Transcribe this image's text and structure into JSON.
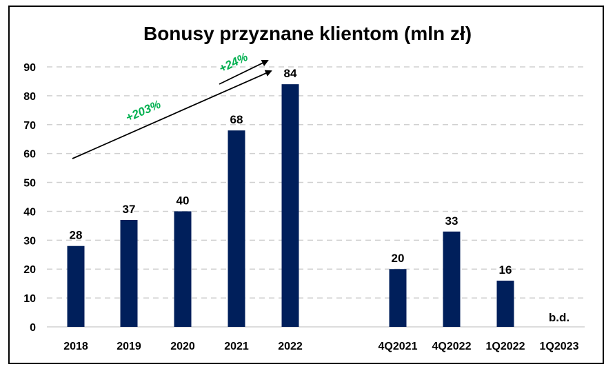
{
  "chart_data": {
    "type": "bar",
    "title": "Bonusy przyznane klientom (mln zł)",
    "categories": [
      "2018",
      "2019",
      "2020",
      "2021",
      "2022",
      "4Q2021",
      "4Q2022",
      "1Q2022",
      "1Q2023"
    ],
    "values": [
      28,
      37,
      40,
      68,
      84,
      20,
      33,
      16,
      null
    ],
    "data_labels": [
      "28",
      "37",
      "40",
      "68",
      "84",
      "20",
      "33",
      "16",
      "b.d."
    ],
    "ylim": [
      0,
      90
    ],
    "yticks": [
      "0",
      "10",
      "20",
      "30",
      "40",
      "50",
      "60",
      "70",
      "80",
      "90"
    ],
    "xlabel": "",
    "ylabel": "",
    "grid": "horizontal dashed",
    "legend": "none",
    "bar_color": "#001f5b",
    "annotations": [
      {
        "text": "+203%",
        "from": "2018",
        "to": "2022",
        "color": "#00b050"
      },
      {
        "text": "+24%",
        "from": "2021",
        "to": "2022",
        "color": "#00b050"
      }
    ]
  }
}
